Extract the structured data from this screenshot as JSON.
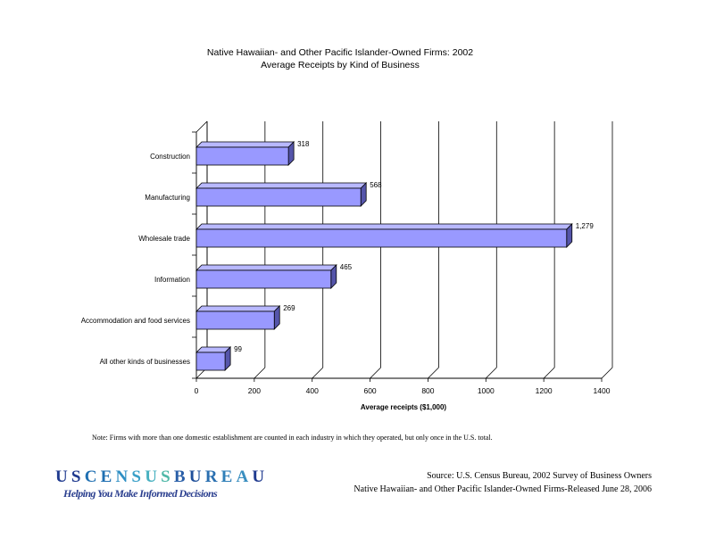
{
  "chart_data": {
    "type": "bar",
    "orientation": "horizontal",
    "title": "Native Hawaiian- and Other Pacific Islander-Owned Firms: 2002",
    "subtitle": "Average Receipts by Kind of Business",
    "categories": [
      "Construction",
      "Manufacturing",
      "Wholesale trade",
      "Information",
      "Accommodation and food services",
      "All other kinds of businesses"
    ],
    "values": [
      318,
      568,
      1279,
      465,
      269,
      99
    ],
    "value_labels": [
      "318",
      "568",
      "1,279",
      "465",
      "269",
      "99"
    ],
    "xlabel": "Average receipts ($1,000)",
    "xlim": [
      0,
      1400
    ],
    "xticks": [
      "0",
      "200",
      "400",
      "600",
      "800",
      "1000",
      "1200",
      "1400"
    ],
    "grid": true,
    "legend": "none",
    "bar_color": "#9999ff"
  },
  "note": "Note: Firms with more than one domestic establishment are counted in each industry in which they operated, but only once in the U.S. total.",
  "logo": {
    "letters": [
      {
        "ch": "U",
        "color": "#1f3a8f"
      },
      {
        "ch": "S",
        "color": "#1f3a8f"
      },
      {
        "ch": "C",
        "color": "#1f6fb2"
      },
      {
        "ch": "E",
        "color": "#1f6fb2"
      },
      {
        "ch": "N",
        "color": "#2f8fc4"
      },
      {
        "ch": "S",
        "color": "#3aa0c8"
      },
      {
        "ch": "U",
        "color": "#46b0c0"
      },
      {
        "ch": "S",
        "color": "#4fb8a8"
      },
      {
        "ch": "B",
        "color": "#2a5fa8"
      },
      {
        "ch": "U",
        "color": "#1f4f9a"
      },
      {
        "ch": "R",
        "color": "#2a6fb0"
      },
      {
        "ch": "E",
        "color": "#2f7fb8"
      },
      {
        "ch": "A",
        "color": "#3a8fc0"
      },
      {
        "ch": "U",
        "color": "#1f3a8f"
      }
    ],
    "tagline": "Helping You Make Informed Decisions"
  },
  "source": {
    "line1": "Source:  U.S. Census Bureau, 2002 Survey of Business Owners",
    "line2": "Native Hawaiian- and Other Pacific Islander-Owned Firms-Released June 28, 2006"
  }
}
